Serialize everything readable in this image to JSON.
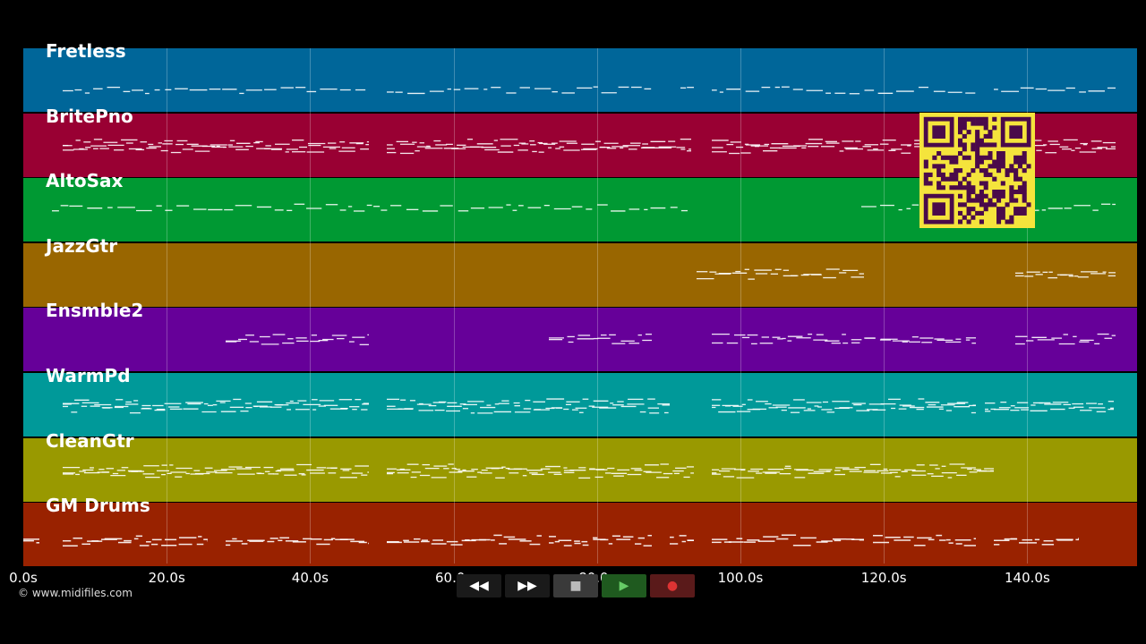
{
  "tracks": [
    {
      "name": "Fretless",
      "color": "#006699"
    },
    {
      "name": "BritePno",
      "color": "#990033"
    },
    {
      "name": "AltoSax",
      "color": "#009933"
    },
    {
      "name": "JazzGtr",
      "color": "#996600"
    },
    {
      "name": "Ensmble2",
      "color": "#660099"
    },
    {
      "name": "WarmPd",
      "color": "#009999"
    },
    {
      "name": "CleanGtr",
      "color": "#999900"
    },
    {
      "name": "GM Drums",
      "color": "#992200"
    }
  ],
  "timeline": {
    "ticks": [
      "0.0s",
      "20.0s",
      "40.0s",
      "60.0s",
      "80.0s",
      "100.0s",
      "120.0s",
      "140.0s"
    ],
    "tick_values_seconds": [
      0,
      20,
      40,
      60,
      80,
      100,
      120,
      140
    ]
  },
  "transport": {
    "buttons": [
      {
        "name": "rewind-button",
        "glyph": "◀◀",
        "bg": "#1a1a1a",
        "fg": "#ffffff"
      },
      {
        "name": "fast-forward-button",
        "glyph": "▶▶",
        "bg": "#1a1a1a",
        "fg": "#ffffff"
      },
      {
        "name": "stop-button",
        "glyph": "■",
        "bg": "#3a3a3a",
        "fg": "#bbbbbb"
      },
      {
        "name": "play-button",
        "glyph": "▶",
        "bg": "#1f5a1f",
        "fg": "#66cc66"
      },
      {
        "name": "record-button",
        "glyph": "●",
        "bg": "#5a1a1a",
        "fg": "#dd3333"
      }
    ]
  },
  "copyright": "© www.midifiles.com",
  "qr_color": "#f5e43c",
  "qr_dark": "#4a0a4a"
}
